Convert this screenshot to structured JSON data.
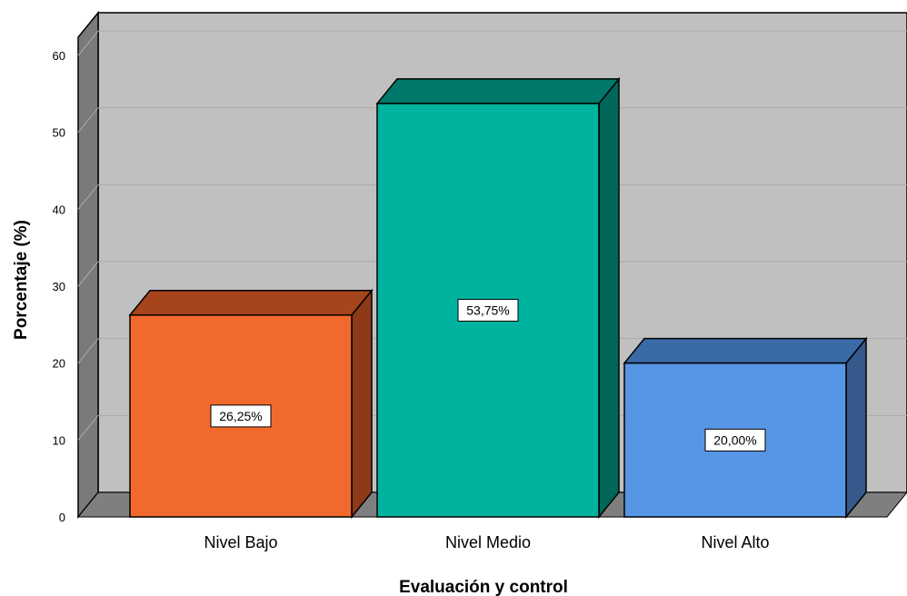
{
  "chart_data": {
    "type": "bar",
    "style": "3d",
    "categories": [
      "Nivel Bajo",
      "Nivel Medio",
      "Nivel Alto"
    ],
    "values": [
      26.25,
      53.75,
      20.0
    ],
    "data_labels": [
      "26,25%",
      "53,75%",
      "20,00%"
    ],
    "xlabel": "Evaluación y control",
    "ylabel": "Porcentaje (%)",
    "ylim": [
      0,
      60
    ],
    "y_ticks": [
      "0",
      "10",
      "20",
      "30",
      "40",
      "50",
      "60"
    ],
    "grid": true,
    "legend": "none",
    "colors": {
      "bars_front": [
        "#f2692d",
        "#00b39e",
        "#5796e6"
      ],
      "bars_top": [
        "#a6441c",
        "#00796b",
        "#3a6aa8"
      ],
      "bars_side": [
        "#8c3a18",
        "#006659",
        "#34598a"
      ],
      "wall": "#c0c0c0",
      "side_wall": "#7a7a7a",
      "floor": "#7f7f7f",
      "gridline": "#aaaaaa"
    }
  }
}
